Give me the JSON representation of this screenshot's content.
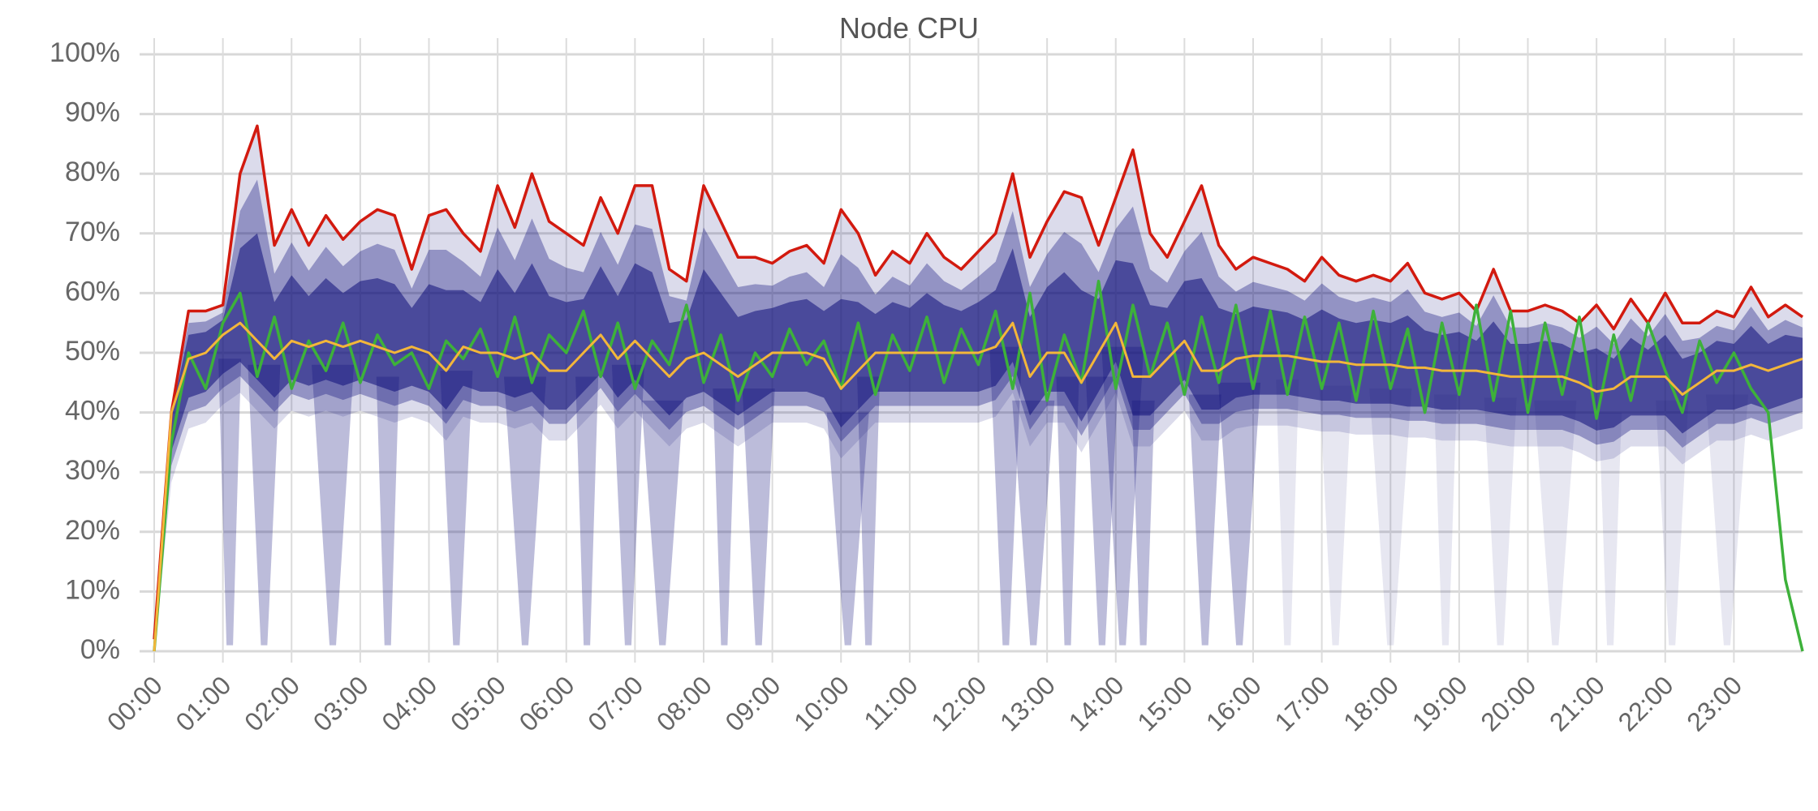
{
  "chart_data": {
    "type": "line",
    "title": "Node CPU",
    "xlabel": "",
    "ylabel": "",
    "xlim": [
      0,
      24
    ],
    "ylim": [
      0,
      100
    ],
    "grid": true,
    "legend": "none",
    "x_tick_labels": [
      "00:00",
      "01:00",
      "02:00",
      "03:00",
      "04:00",
      "05:00",
      "06:00",
      "07:00",
      "08:00",
      "09:00",
      "10:00",
      "11:00",
      "12:00",
      "13:00",
      "14:00",
      "15:00",
      "16:00",
      "17:00",
      "18:00",
      "19:00",
      "20:00",
      "21:00",
      "22:00",
      "23:00"
    ],
    "y_tick_labels": [
      "0%",
      "10%",
      "20%",
      "30%",
      "40%",
      "50%",
      "60%",
      "70%",
      "80%",
      "90%",
      "100%"
    ],
    "x_step_hours": 0.25,
    "series": [
      {
        "color": "#d21a0f",
        "values": [
          2,
          40,
          57,
          57,
          58,
          80,
          88,
          68,
          74,
          68,
          73,
          69,
          72,
          74,
          73,
          64,
          73,
          74,
          70,
          67,
          78,
          71,
          80,
          72,
          70,
          68,
          76,
          70,
          78,
          78,
          64,
          62,
          78,
          72,
          66,
          66,
          65,
          67,
          68,
          65,
          74,
          70,
          63,
          67,
          65,
          70,
          66,
          64,
          67,
          70,
          80,
          66,
          72,
          77,
          76,
          68,
          76,
          84,
          70,
          66,
          72,
          78,
          68,
          64,
          66,
          65,
          64,
          62,
          66,
          63,
          62,
          63,
          62,
          65,
          60,
          59,
          60,
          57,
          64,
          57,
          57,
          58,
          57,
          55,
          58,
          54,
          59,
          55,
          60,
          55,
          55,
          57,
          56,
          61,
          56,
          58,
          56
        ]
      },
      {
        "color": "#f3b63a",
        "values": [
          0,
          40,
          49,
          50,
          53,
          55,
          52,
          49,
          52,
          51,
          52,
          51,
          52,
          51,
          50,
          51,
          50,
          47,
          51,
          50,
          50,
          49,
          50,
          47,
          47,
          50,
          53,
          49,
          52,
          49,
          46,
          49,
          50,
          48,
          46,
          48,
          50,
          50,
          50,
          49,
          44,
          47,
          50,
          50,
          50,
          50,
          50,
          50,
          50,
          51,
          55,
          46,
          50,
          50,
          45,
          50,
          55,
          46,
          46,
          49,
          52,
          47,
          47,
          49,
          49.5,
          49.5,
          49.5,
          49,
          48.5,
          48.5,
          48,
          48,
          48,
          47.5,
          47.5,
          47,
          47,
          47,
          46.5,
          46,
          46,
          46,
          46,
          45,
          43.5,
          44,
          46,
          46,
          46,
          43,
          45,
          47,
          47,
          48,
          47,
          48,
          49
        ]
      },
      {
        "color": "#3db13a",
        "values": [
          0,
          35,
          50,
          44,
          55,
          60,
          46,
          56,
          44,
          52,
          47,
          55,
          45,
          53,
          48,
          50,
          44,
          52,
          49,
          54,
          46,
          56,
          45,
          53,
          50,
          57,
          46,
          55,
          44,
          52,
          48,
          58,
          45,
          53,
          42,
          50,
          46,
          54,
          48,
          52,
          44,
          55,
          43,
          53,
          47,
          56,
          45,
          54,
          48,
          57,
          44,
          60,
          42,
          53,
          45,
          62,
          44,
          58,
          46,
          55,
          43,
          56,
          45,
          58,
          44,
          57,
          43,
          56,
          44,
          55,
          42,
          57,
          44,
          54,
          40,
          55,
          43,
          58,
          42,
          57,
          40,
          55,
          43,
          56,
          39,
          53,
          42,
          55,
          47,
          40,
          52,
          45,
          50,
          44,
          40,
          12,
          0
        ]
      }
    ],
    "density_color": "#0f0f7a"
  }
}
